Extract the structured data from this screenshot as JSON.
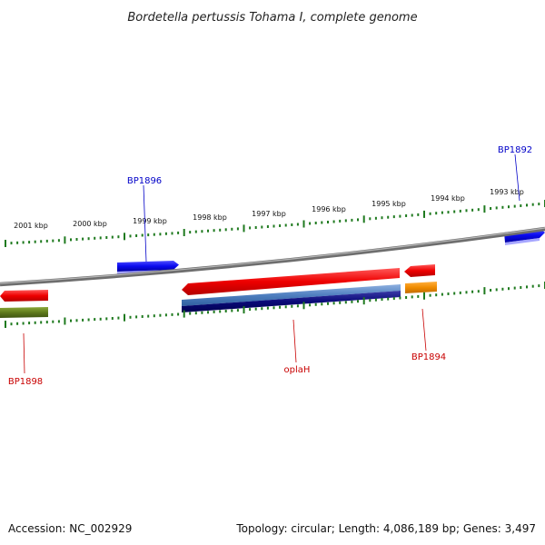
{
  "title": "Bordetella pertussis Tohama I, complete genome",
  "footer": {
    "accession": "Accession: NC_002929",
    "summary": "Topology: circular; Length: 4,086,189 bp; Genes: 3,497"
  },
  "ticks": [
    "2001 kbp",
    "2000 kbp",
    "1999 kbp",
    "1998 kbp",
    "1997 kbp",
    "1996 kbp",
    "1995 kbp",
    "1994 kbp",
    "1993 kbp"
  ],
  "gene_labels": [
    {
      "text": "BP1896",
      "color": "#0000c8"
    },
    {
      "text": "BP1892",
      "color": "#0000c8"
    },
    {
      "text": "BP1898",
      "color": "#c80000"
    },
    {
      "text": "oplaH",
      "color": "#c80000"
    },
    {
      "text": "BP1894",
      "color": "#c80000"
    }
  ],
  "colors": {
    "backbone": "#8a8a8a",
    "ticks": "#1f7a1f",
    "forward_gene": "#0a0aef",
    "reverse_gene": "#ee0000",
    "olive_gene": "#5f7a1c",
    "orange_gene": "#f08c00",
    "steel_gene": "#4f7fbf",
    "navy_gene": "#0a0a78"
  }
}
